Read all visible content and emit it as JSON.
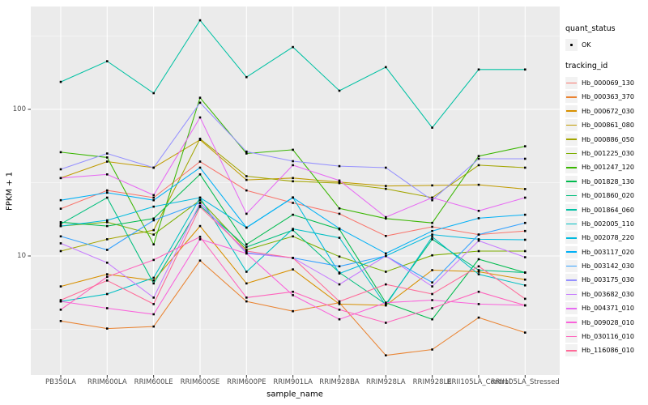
{
  "legend": {
    "quant_status_title": "quant_status",
    "ok_label": "OK",
    "tracking_id_title": "tracking_id"
  },
  "chart_data": {
    "type": "line",
    "title": "",
    "xlabel": "sample_name",
    "ylabel": "FPKM + 1",
    "y_scale": "log10",
    "grid": true,
    "legend_position": "right",
    "panel_bg": "#EBEBEB",
    "grid_color": "#FFFFFF",
    "point_color": "#000000",
    "point_shape": "square-dot",
    "y_ticks": [
      {
        "label": "100",
        "value": 100
      },
      {
        "label": "10",
        "value": 10
      }
    ],
    "y_minor_gridlines": [
      316.23,
      31.623,
      3.1623
    ],
    "ylim": [
      1.6,
      500
    ],
    "categories": [
      "PB350LA",
      "RRIM600LA",
      "RRIM600LE",
      "RRIM600SE",
      "RRIM600PE",
      "RRIM901LA",
      "RRIM928BA",
      "RRIM928LA",
      "RRIM928LE",
      "RRII105LA_Control",
      "RRII105LA_Stressed"
    ],
    "series": [
      {
        "name": "Hb_000069_130",
        "color": "#F8766D",
        "values": [
          21,
          28,
          25,
          44,
          28,
          23,
          19.4,
          13.7,
          15.8,
          14,
          14.8
        ]
      },
      {
        "name": "Hb_000363_370",
        "color": "#EA8331",
        "values": [
          3.6,
          3.2,
          3.3,
          9.3,
          4.9,
          4.2,
          4.8,
          2.1,
          2.3,
          3.8,
          3.0
        ]
      },
      {
        "name": "Hb_000672_030",
        "color": "#D89000",
        "values": [
          6.2,
          7.5,
          6.8,
          16,
          6.5,
          8.1,
          4.7,
          4.6,
          8.0,
          7.8,
          6.9
        ]
      },
      {
        "name": "Hb_000861_080",
        "color": "#C09B00",
        "values": [
          34,
          44,
          40,
          62,
          33,
          34,
          31.9,
          30,
          30.3,
          30.6,
          28.6
        ]
      },
      {
        "name": "Hb_000886_050",
        "color": "#A3A500",
        "values": [
          10.8,
          13,
          15,
          63,
          35,
          32.3,
          31.4,
          28.7,
          25,
          41.6,
          40
        ]
      },
      {
        "name": "Hb_001225_030",
        "color": "#7CAE00",
        "values": [
          16,
          17,
          14,
          24,
          11,
          13.6,
          9.9,
          7.8,
          10.1,
          10.8,
          10.8
        ]
      },
      {
        "name": "Hb_001247_120",
        "color": "#39B600",
        "values": [
          51,
          47,
          12,
          120,
          50,
          53,
          21.1,
          18,
          16.8,
          48,
          56
        ]
      },
      {
        "name": "Hb_001828_130",
        "color": "#00BB4E",
        "values": [
          17,
          16,
          18,
          36,
          12,
          19.1,
          15.2,
          4.8,
          3.7,
          9.5,
          7.7
        ]
      },
      {
        "name": "Hb_001860_020",
        "color": "#00BF7D",
        "values": [
          16.5,
          25,
          6.5,
          22,
          11.5,
          15,
          7.7,
          4.7,
          13,
          8.0,
          7.7
        ]
      },
      {
        "name": "Hb_001864_060",
        "color": "#00C1A3",
        "values": [
          154,
          213,
          129,
          405,
          166,
          266,
          134,
          194,
          75,
          187,
          187
        ]
      },
      {
        "name": "Hb_002005_110",
        "color": "#00BFC4",
        "values": [
          4.9,
          5.5,
          7.1,
          25,
          7.8,
          15.3,
          13.3,
          4.6,
          13.5,
          7.5,
          6.3
        ]
      },
      {
        "name": "Hb_002078_220",
        "color": "#00BADE",
        "values": [
          16,
          17.5,
          21.7,
          25,
          15.6,
          25.1,
          7.6,
          10,
          14,
          13,
          12.9
        ]
      },
      {
        "name": "Hb_003117_020",
        "color": "#00B0F6",
        "values": [
          24,
          27,
          24,
          40,
          15.6,
          25,
          15.4,
          10.4,
          14.8,
          18.1,
          19.1
        ]
      },
      {
        "name": "Hb_003142_030",
        "color": "#35A2FF",
        "values": [
          13.6,
          11,
          17.5,
          23,
          10.5,
          9.7,
          8.5,
          10,
          6.6,
          14,
          16.8
        ]
      },
      {
        "name": "Hb_003175_030",
        "color": "#9590FF",
        "values": [
          39,
          50,
          40,
          111,
          51.5,
          44.3,
          41,
          40,
          24,
          46,
          46
        ]
      },
      {
        "name": "Hb_003682_030",
        "color": "#C77CFF",
        "values": [
          12.2,
          9.0,
          5.2,
          23,
          10.4,
          9.7,
          6.4,
          10,
          6.2,
          12.7,
          9.8
        ]
      },
      {
        "name": "Hb_004371_010",
        "color": "#E76BF3",
        "values": [
          34,
          36,
          26,
          88,
          19.4,
          41.6,
          32.7,
          18.4,
          25,
          20.3,
          25
        ]
      },
      {
        "name": "Hb_009028_010",
        "color": "#FA62DB",
        "values": [
          4.9,
          4.4,
          4.0,
          13,
          10.4,
          5.4,
          3.7,
          4.8,
          5.0,
          4.7,
          4.6
        ]
      },
      {
        "name": "Hb_030116_010",
        "color": "#FF62BC",
        "values": [
          4.3,
          7.2,
          9.4,
          13.5,
          5.2,
          5.7,
          4.3,
          3.5,
          4.4,
          5.7,
          4.6
        ]
      },
      {
        "name": "Hb_116086_010",
        "color": "#FF6A98",
        "values": [
          5.0,
          6.8,
          4.7,
          21.6,
          10.8,
          9.7,
          4.9,
          6.4,
          5.5,
          8.5,
          5.1
        ]
      }
    ]
  }
}
